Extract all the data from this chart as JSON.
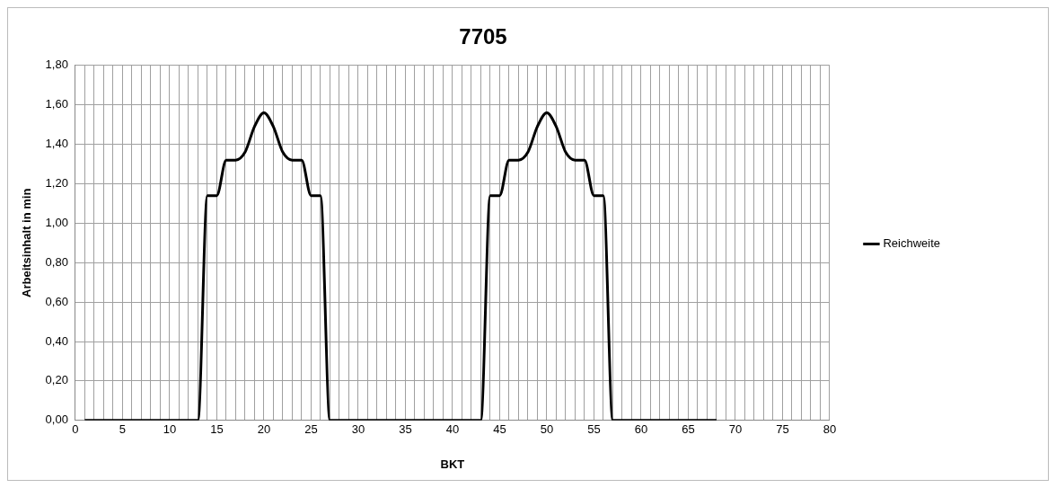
{
  "chart_data": {
    "type": "line",
    "title": "7705",
    "xlabel": "BKT",
    "ylabel": "Arbeitsinhalt in min",
    "x": [
      1,
      2,
      3,
      4,
      5,
      6,
      7,
      8,
      9,
      10,
      11,
      12,
      13,
      14,
      15,
      16,
      17,
      18,
      19,
      20,
      21,
      22,
      23,
      24,
      25,
      26,
      27,
      28,
      29,
      30,
      31,
      32,
      33,
      34,
      35,
      36,
      37,
      38,
      39,
      40,
      41,
      42,
      43,
      44,
      45,
      46,
      47,
      48,
      49,
      50,
      51,
      52,
      53,
      54,
      55,
      56,
      57,
      58,
      59,
      60,
      61,
      62,
      63,
      64,
      65,
      66,
      67,
      68
    ],
    "series": [
      {
        "name": "Reichweite",
        "color": "#000000",
        "values": [
          0,
          0,
          0,
          0,
          0,
          0,
          0,
          0,
          0,
          0,
          0,
          0,
          0,
          1.14,
          1.14,
          1.32,
          1.32,
          1.36,
          1.49,
          1.56,
          1.49,
          1.36,
          1.32,
          1.32,
          1.14,
          1.14,
          0,
          0,
          0,
          0,
          0,
          0,
          0,
          0,
          0,
          0,
          0,
          0,
          0,
          0,
          0,
          0,
          0,
          1.14,
          1.14,
          1.32,
          1.32,
          1.36,
          1.49,
          1.56,
          1.49,
          1.36,
          1.32,
          1.32,
          1.14,
          1.14,
          0,
          0,
          0,
          0,
          0,
          0,
          0,
          0,
          0,
          0,
          0,
          0
        ]
      }
    ],
    "xlim": [
      0,
      80
    ],
    "xticks": [
      0,
      {
        "value": 1,
        "label": null
      },
      {
        "value": 2,
        "label": null
      },
      {
        "value": 3,
        "label": null
      },
      {
        "value": 4,
        "label": null
      },
      5,
      {
        "value": 6,
        "label": null
      },
      {
        "value": 7,
        "label": null
      },
      {
        "value": 8,
        "label": null
      },
      {
        "value": 9,
        "label": null
      },
      10,
      {
        "value": 11,
        "label": null
      },
      {
        "value": 12,
        "label": null
      },
      {
        "value": 13,
        "label": null
      },
      {
        "value": 14,
        "label": null
      },
      15,
      {
        "value": 16,
        "label": null
      },
      {
        "value": 17,
        "label": null
      },
      {
        "value": 18,
        "label": null
      },
      {
        "value": 19,
        "label": null
      },
      20,
      {
        "value": 21,
        "label": null
      },
      {
        "value": 22,
        "label": null
      },
      {
        "value": 23,
        "label": null
      },
      {
        "value": 24,
        "label": null
      },
      25,
      {
        "value": 26,
        "label": null
      },
      {
        "value": 27,
        "label": null
      },
      {
        "value": 28,
        "label": null
      },
      {
        "value": 29,
        "label": null
      },
      30,
      {
        "value": 31,
        "label": null
      },
      {
        "value": 32,
        "label": null
      },
      {
        "value": 33,
        "label": null
      },
      {
        "value": 34,
        "label": null
      },
      35,
      {
        "value": 36,
        "label": null
      },
      {
        "value": 37,
        "label": null
      },
      {
        "value": 38,
        "label": null
      },
      {
        "value": 39,
        "label": null
      },
      40,
      {
        "value": 41,
        "label": null
      },
      {
        "value": 42,
        "label": null
      },
      {
        "value": 43,
        "label": null
      },
      {
        "value": 44,
        "label": null
      },
      45,
      {
        "value": 46,
        "label": null
      },
      {
        "value": 47,
        "label": null
      },
      {
        "value": 48,
        "label": null
      },
      {
        "value": 49,
        "label": null
      },
      50,
      {
        "value": 51,
        "label": null
      },
      {
        "value": 52,
        "label": null
      },
      {
        "value": 53,
        "label": null
      },
      {
        "value": 54,
        "label": null
      },
      55,
      {
        "value": 56,
        "label": null
      },
      {
        "value": 57,
        "label": null
      },
      {
        "value": 58,
        "label": null
      },
      {
        "value": 59,
        "label": null
      },
      60,
      {
        "value": 61,
        "label": null
      },
      {
        "value": 62,
        "label": null
      },
      {
        "value": 63,
        "label": null
      },
      {
        "value": 64,
        "label": null
      },
      65,
      {
        "value": 66,
        "label": null
      },
      {
        "value": 67,
        "label": null
      },
      {
        "value": 68,
        "label": null
      },
      {
        "value": 69,
        "label": null
      },
      70,
      {
        "value": 71,
        "label": null
      },
      {
        "value": 72,
        "label": null
      },
      {
        "value": 73,
        "label": null
      },
      {
        "value": 74,
        "label": null
      },
      75,
      {
        "value": 76,
        "label": null
      },
      {
        "value": 77,
        "label": null
      },
      {
        "value": 78,
        "label": null
      },
      {
        "value": 79,
        "label": null
      },
      80
    ],
    "ylim": [
      0,
      1.8
    ],
    "yticks": [
      {
        "value": 0,
        "label": "0,00"
      },
      {
        "value": 0.2,
        "label": "0,20"
      },
      {
        "value": 0.4,
        "label": "0,40"
      },
      {
        "value": 0.6,
        "label": "0,60"
      },
      {
        "value": 0.8,
        "label": "0,80"
      },
      {
        "value": 1,
        "label": "1,00"
      },
      {
        "value": 1.2,
        "label": "1,20"
      },
      {
        "value": 1.4,
        "label": "1,40"
      },
      {
        "value": 1.6,
        "label": "1,60"
      },
      {
        "value": 1.8,
        "label": "1,80"
      }
    ],
    "grid": true,
    "legend": "right",
    "marker": "none",
    "line_style": "solid"
  }
}
